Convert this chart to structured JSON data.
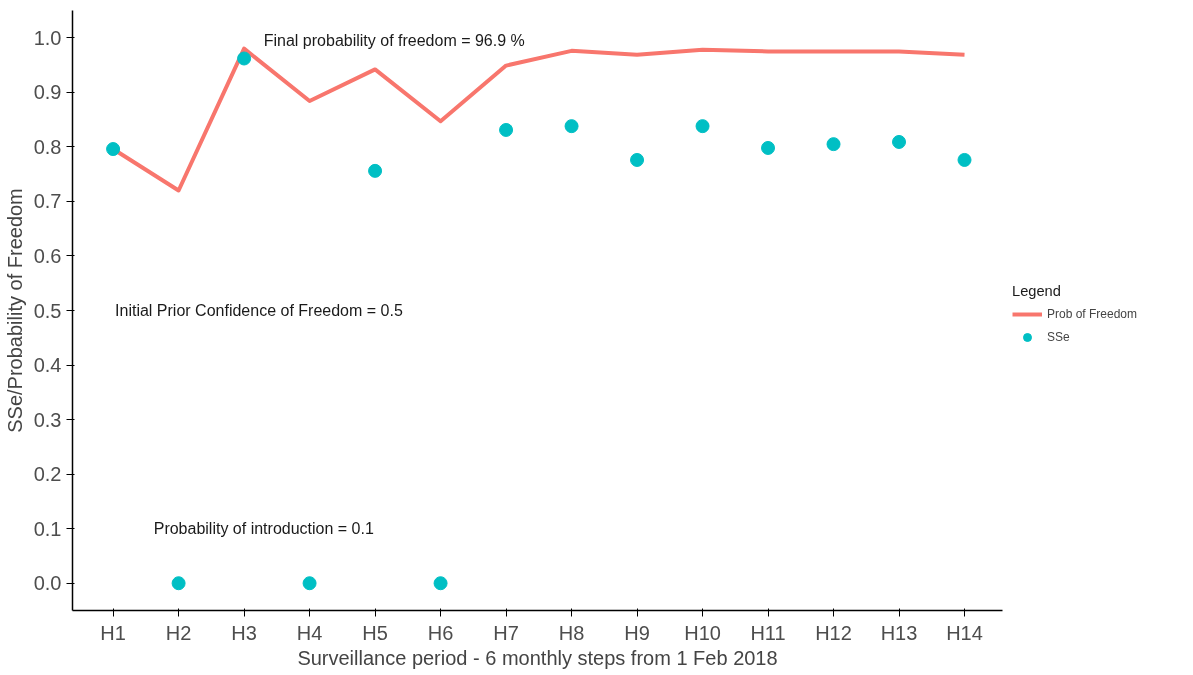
{
  "chart_data": {
    "type": "line",
    "xlabel": "Surveillance period - 6 monthly steps from 1 Feb 2018",
    "ylabel": "SSe/Probability of Freedom",
    "legend_title": "Legend",
    "categories": [
      "H1",
      "H2",
      "H3",
      "H4",
      "H5",
      "H6",
      "H7",
      "H8",
      "H9",
      "H10",
      "H11",
      "H12",
      "H13",
      "H14"
    ],
    "series": [
      {
        "name": "Prob of Freedom",
        "color": "#f8766d",
        "values": [
          0.796,
          0.72,
          0.98,
          0.884,
          0.942,
          0.847,
          0.949,
          0.976,
          0.969,
          0.978,
          0.975,
          0.975,
          0.975,
          0.969
        ]
      },
      {
        "name": "SSe",
        "type": "scatter",
        "color": "#00bfc4",
        "marker": "circle",
        "values": [
          0.796,
          0,
          0.962,
          0,
          0.756,
          0,
          0.831,
          0.838,
          0.776,
          0.838,
          0.798,
          0.805,
          0.809,
          0.776
        ]
      }
    ],
    "annotations": [
      "Final probability of freedom = 96.9 %",
      "Initial Prior Confidence of Freedom = 0.5",
      "Probability of introduction = 0.1"
    ],
    "ylim": [
      -0.05,
      1.05
    ],
    "yticks": [
      {
        "value": 0,
        "label": "0.0"
      },
      0.1,
      0.2,
      0.3,
      0.4,
      0.5,
      0.6,
      0.7,
      0.8,
      0.9,
      {
        "value": 1,
        "label": "1.0"
      }
    ],
    "grid": false,
    "legend": "right"
  }
}
